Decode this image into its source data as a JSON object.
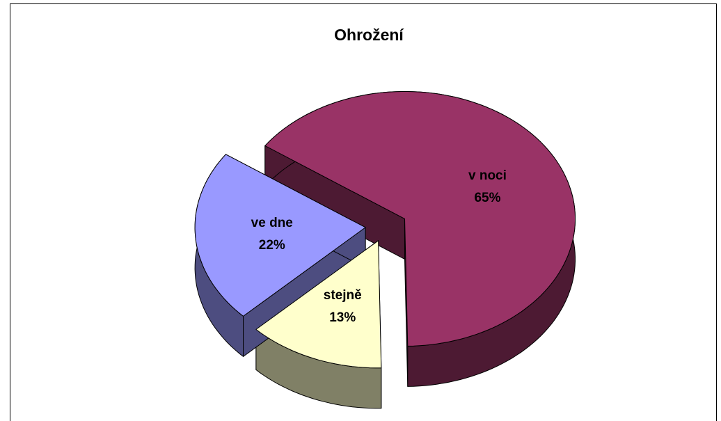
{
  "chart_data": {
    "type": "pie",
    "title": "Ohrožení",
    "categories": [
      "v noci",
      "stejně",
      "ve dne"
    ],
    "values": [
      65,
      13,
      22
    ],
    "value_labels": [
      "65%",
      "13%",
      "22%"
    ],
    "colors": [
      "#993366",
      "#ffffcc",
      "#9999ff"
    ],
    "exploded": true,
    "three_d": true
  }
}
